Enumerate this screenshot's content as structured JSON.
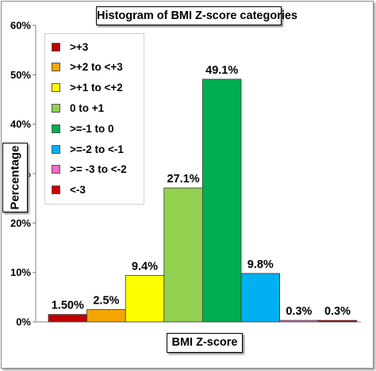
{
  "chart_data": {
    "type": "bar",
    "title": "Histogram of BMI Z-score categories",
    "xlabel": "BMI Z-score",
    "ylabel": "Percentage",
    "ylim": [
      0,
      60
    ],
    "yticks": [
      "0%",
      "10%",
      "20%",
      "30%",
      "40%",
      "50%",
      "60%"
    ],
    "grid": false,
    "legend_position": "top-left",
    "categories": [
      ">+3",
      ">+2 to <+3",
      ">+1 to <+2",
      "0 to +1",
      ">=-1 to 0",
      ">=-2 to <-1",
      ">= -3 to <-2",
      "<-3"
    ],
    "values": [
      1.5,
      2.5,
      9.4,
      27.1,
      49.1,
      9.8,
      0.3,
      0.3
    ],
    "data_labels": [
      "1.50%",
      "2.5%",
      "9.4%",
      "27.1%",
      "49.1%",
      "9.8%",
      "0.3%",
      "0.3%"
    ],
    "colors": [
      "#c00000",
      "#f5a500",
      "#ffff00",
      "#92d050",
      "#00b050",
      "#00b0f0",
      "#ff66cc",
      "#cc0000"
    ]
  }
}
